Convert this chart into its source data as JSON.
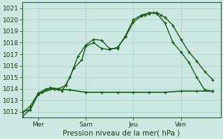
{
  "xlabel": "Pression niveau de la mer( hPa )",
  "bg_color": "#cce8e0",
  "grid_color": "#a8d4cc",
  "line_color": "#1a5c1a",
  "ylim": [
    1011.5,
    1021.5
  ],
  "xlim": [
    0,
    100
  ],
  "xtick_positions": [
    8,
    32,
    56,
    80
  ],
  "xtick_labels": [
    "Mer",
    "Sam",
    "Jeu",
    "Ven"
  ],
  "ytick_positions": [
    1012,
    1013,
    1014,
    1015,
    1016,
    1017,
    1018,
    1019,
    1020,
    1021
  ],
  "series1_x": [
    0,
    4,
    8,
    10,
    14,
    18,
    22,
    26,
    30,
    32,
    36,
    40,
    44,
    48,
    52,
    56,
    60,
    62,
    64,
    66,
    68,
    72,
    76,
    80,
    84,
    88,
    92,
    96
  ],
  "series1_y": [
    1011.6,
    1012.2,
    1013.5,
    1013.7,
    1014.1,
    1014.0,
    1014.3,
    1015.8,
    1016.5,
    1017.7,
    1018.0,
    1017.5,
    1017.4,
    1017.6,
    1018.5,
    1019.8,
    1020.3,
    1020.4,
    1020.5,
    1020.6,
    1020.5,
    1019.7,
    1018.0,
    1017.2,
    1016.3,
    1015.0,
    1013.9,
    1013.8
  ],
  "series2_x": [
    0,
    4,
    8,
    12,
    16,
    20,
    24,
    28,
    32,
    36,
    40,
    44,
    48,
    52,
    56,
    60,
    64,
    68,
    70,
    72,
    76,
    80,
    84,
    88,
    92,
    96
  ],
  "series2_y": [
    1011.9,
    1012.5,
    1013.6,
    1014.0,
    1014.0,
    1013.8,
    1015.0,
    1016.8,
    1017.8,
    1018.3,
    1018.2,
    1017.5,
    1017.5,
    1018.6,
    1020.0,
    1020.4,
    1020.6,
    1020.6,
    1020.4,
    1020.2,
    1019.5,
    1018.3,
    1017.2,
    1016.4,
    1015.5,
    1014.8
  ],
  "series3_x": [
    0,
    4,
    8,
    16,
    24,
    32,
    40,
    48,
    56,
    64,
    72,
    80,
    88,
    96
  ],
  "series3_y": [
    1012.0,
    1012.2,
    1013.6,
    1014.0,
    1013.9,
    1013.7,
    1013.7,
    1013.7,
    1013.7,
    1013.7,
    1013.7,
    1013.8,
    1013.8,
    1013.8
  ]
}
